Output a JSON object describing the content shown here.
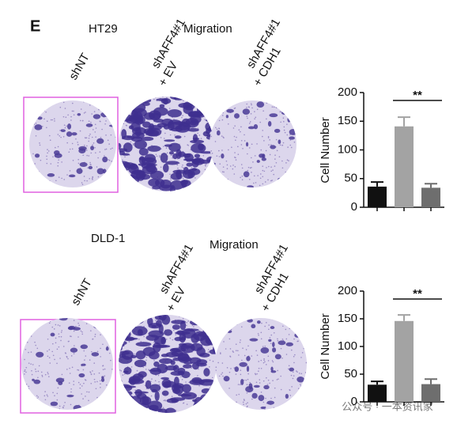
{
  "panel_label": "E",
  "rows": [
    {
      "cell_line": "HT29",
      "assay": "Migration",
      "conditions": [
        [
          "shNT"
        ],
        [
          "shAFF4#1",
          "+ EV"
        ],
        [
          "shAFF4#1",
          "+ CDH1"
        ]
      ]
    },
    {
      "cell_line": "DLD-1",
      "assay": "Migration",
      "conditions": [
        [
          "shNT"
        ],
        [
          "shAFF4#1",
          "+ EV"
        ],
        [
          "shAFF4#1",
          "+ CDH1"
        ]
      ]
    }
  ],
  "watermark": "公众号 · 一本资讯家",
  "chart_data": [
    {
      "type": "bar",
      "y_label": "Cell Number",
      "categories": [
        null,
        null,
        null
      ],
      "values": [
        36,
        141,
        34
      ],
      "errors": [
        8,
        16,
        7
      ],
      "colors": [
        "#111111",
        "#a3a3a3",
        "#6e6e6e"
      ],
      "ylim": [
        0,
        200
      ],
      "yticks": [
        0,
        50,
        100,
        150,
        200
      ],
      "significance": "**"
    },
    {
      "type": "bar",
      "y_label": "Cell Number",
      "categories": [
        null,
        null,
        null
      ],
      "values": [
        31,
        146,
        32
      ],
      "errors": [
        6,
        11,
        9
      ],
      "colors": [
        "#111111",
        "#a3a3a3",
        "#6e6e6e"
      ],
      "ylim": [
        0,
        200
      ],
      "yticks": [
        0,
        50,
        100,
        150,
        200
      ],
      "significance": "**"
    }
  ]
}
